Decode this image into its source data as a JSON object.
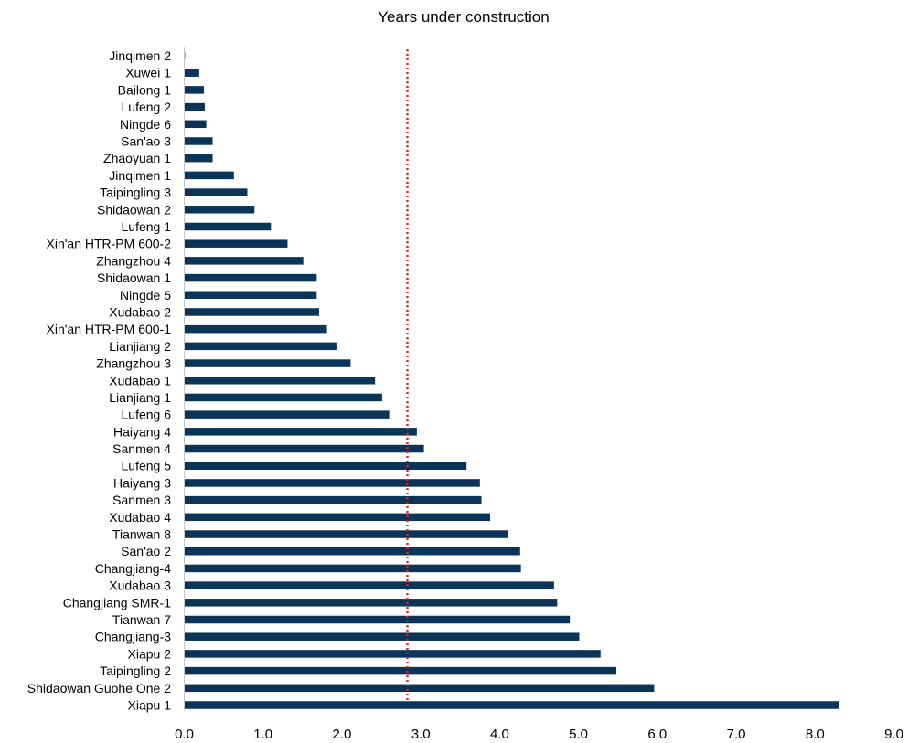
{
  "chart_data": {
    "type": "bar",
    "orientation": "horizontal",
    "title": "Years under construction",
    "xlabel": "",
    "ylabel": "",
    "xlim": [
      0,
      9
    ],
    "x_ticks": [
      "0.0",
      "1.0",
      "2.0",
      "3.0",
      "4.0",
      "5.0",
      "6.0",
      "7.0",
      "8.0",
      "9.0"
    ],
    "categories": [
      "Jinqimen 2",
      "Xuwei 1",
      "Bailong 1",
      "Lufeng 2",
      "Ningde 6",
      "San'ao 3",
      "Zhaoyuan 1",
      "Jinqimen 1",
      "Taipingling 3",
      "Shidaowan 2",
      "Lufeng 1",
      "Xin'an HTR-PM 600-2",
      "Zhangzhou 4",
      "Shidaowan 1",
      "Ningde 5",
      "Xudabao 2",
      "Xin'an HTR-PM 600-1",
      "Lianjiang 2",
      "Zhangzhou 3",
      "Xudabao 1",
      "Lianjiang 1",
      "Lufeng 6",
      "Haiyang 4",
      "Sanmen 4",
      "Lufeng 5",
      "Haiyang 3",
      "Sanmen 3",
      "Xudabao 4",
      "Tianwan 8",
      "San'ao 2",
      "Changjiang-4",
      "Xudabao 3",
      "Changjiang SMR-1",
      "Tianwan 7",
      "Changjiang-3",
      "Xiapu 2",
      "Taipingling 2",
      "Shidaowan Guohe One 2",
      "Xiapu 1"
    ],
    "values": [
      0.01,
      0.19,
      0.25,
      0.26,
      0.28,
      0.36,
      0.36,
      0.63,
      0.8,
      0.89,
      1.1,
      1.31,
      1.51,
      1.68,
      1.68,
      1.71,
      1.81,
      1.93,
      2.11,
      2.42,
      2.51,
      2.6,
      2.95,
      3.04,
      3.58,
      3.75,
      3.77,
      3.88,
      4.11,
      4.26,
      4.27,
      4.69,
      4.73,
      4.89,
      5.01,
      5.28,
      5.48,
      5.96,
      8.3
    ],
    "reference_line": {
      "value": 2.83,
      "style": "dotted",
      "color": "#e02020"
    },
    "bar_color": "#0b3558",
    "grid": false,
    "legend": "none"
  }
}
